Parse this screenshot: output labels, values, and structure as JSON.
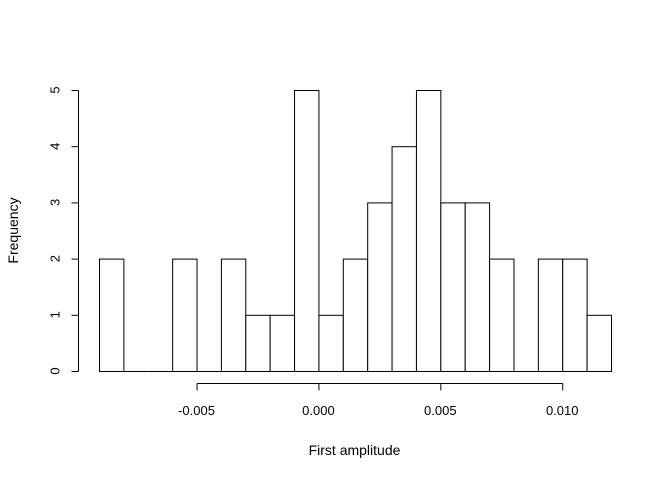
{
  "chart_data": {
    "type": "bar",
    "subtype": "histogram",
    "title": "",
    "xlabel": "First amplitude",
    "ylabel": "Frequency",
    "bin_width": 0.001,
    "bins": [
      {
        "start": -0.009,
        "end": -0.008,
        "count": 2
      },
      {
        "start": -0.008,
        "end": -0.007,
        "count": 0
      },
      {
        "start": -0.007,
        "end": -0.006,
        "count": 0
      },
      {
        "start": -0.006,
        "end": -0.005,
        "count": 2
      },
      {
        "start": -0.005,
        "end": -0.004,
        "count": 0
      },
      {
        "start": -0.004,
        "end": -0.003,
        "count": 2
      },
      {
        "start": -0.003,
        "end": -0.002,
        "count": 1
      },
      {
        "start": -0.002,
        "end": -0.001,
        "count": 1
      },
      {
        "start": -0.001,
        "end": 0.0,
        "count": 5
      },
      {
        "start": 0.0,
        "end": 0.001,
        "count": 1
      },
      {
        "start": 0.001,
        "end": 0.002,
        "count": 2
      },
      {
        "start": 0.002,
        "end": 0.003,
        "count": 3
      },
      {
        "start": 0.003,
        "end": 0.004,
        "count": 4
      },
      {
        "start": 0.004,
        "end": 0.005,
        "count": 5
      },
      {
        "start": 0.005,
        "end": 0.006,
        "count": 3
      },
      {
        "start": 0.006,
        "end": 0.007,
        "count": 3
      },
      {
        "start": 0.007,
        "end": 0.008,
        "count": 2
      },
      {
        "start": 0.008,
        "end": 0.009,
        "count": 0
      },
      {
        "start": 0.009,
        "end": 0.01,
        "count": 2
      },
      {
        "start": 0.01,
        "end": 0.011,
        "count": 2
      },
      {
        "start": 0.011,
        "end": 0.012,
        "count": 1
      }
    ],
    "xlim": [
      -0.009,
      0.012
    ],
    "ylim": [
      0,
      5
    ],
    "x_ticks": [
      {
        "value": -0.005,
        "label": "-0.005"
      },
      {
        "value": 0.0,
        "label": "0.000"
      },
      {
        "value": 0.005,
        "label": "0.005"
      },
      {
        "value": 0.01,
        "label": "0.010"
      }
    ],
    "y_ticks": [
      {
        "value": 0,
        "label": "0"
      },
      {
        "value": 1,
        "label": "1"
      },
      {
        "value": 2,
        "label": "2"
      },
      {
        "value": 3,
        "label": "3"
      },
      {
        "value": 4,
        "label": "4"
      },
      {
        "value": 5,
        "label": "5"
      }
    ],
    "grid": false,
    "legend": "none",
    "bar_fill": "#ffffff",
    "bar_stroke": "#000000"
  }
}
